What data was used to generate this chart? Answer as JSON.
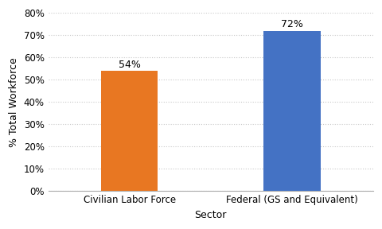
{
  "categories": [
    "Civilian Labor Force",
    "Federal (GS and Equivalent)"
  ],
  "values": [
    0.54,
    0.72
  ],
  "bar_colors": [
    "#E87722",
    "#4472C4"
  ],
  "bar_labels": [
    "54%",
    "72%"
  ],
  "xlabel": "Sector",
  "ylabel": "% Total Workforce",
  "ylim": [
    0,
    0.8
  ],
  "yticks": [
    0.0,
    0.1,
    0.2,
    0.3,
    0.4,
    0.5,
    0.6,
    0.7,
    0.8
  ],
  "background_color": "#ffffff",
  "grid_color": "#c8c8c8",
  "label_fontsize": 9,
  "tick_fontsize": 8.5,
  "bar_width": 0.35
}
